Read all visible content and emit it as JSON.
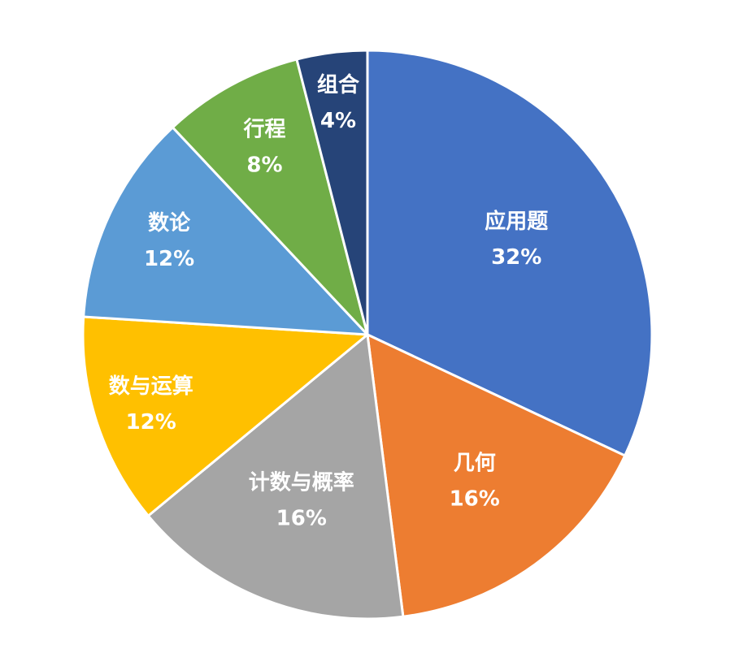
{
  "chart_data": {
    "type": "pie",
    "title": "",
    "legend": "none",
    "categories": [
      "应用题",
      "几何",
      "计数与概率",
      "数与运算",
      "数论",
      "行程",
      "组合"
    ],
    "values": [
      32,
      16,
      16,
      12,
      12,
      8,
      4
    ],
    "percent_labels": [
      "32%",
      "16%",
      "16%",
      "12%",
      "12%",
      "8%",
      "4%"
    ],
    "colors": [
      "#4472C4",
      "#ED7D31",
      "#A5A5A5",
      "#FFC000",
      "#5B9BD5",
      "#70AD47",
      "#264478"
    ],
    "start_angle_deg": 0,
    "direction": "clockwise"
  }
}
